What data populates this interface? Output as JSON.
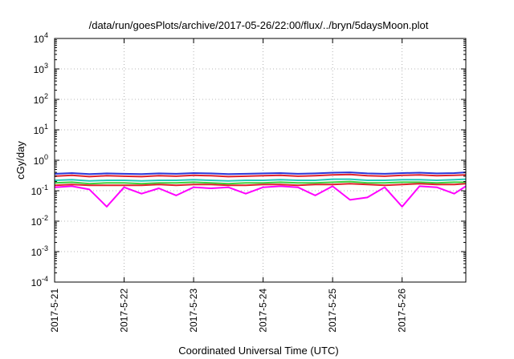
{
  "chart_data": {
    "type": "line",
    "title": "/data/run/goesPlots/archive/2017-05-26/22:00/flux/../bryn/5daysMoon.plot",
    "xlabel": "Coordinated Universal Time (UTC)",
    "ylabel": "cGy/day",
    "yscale": "log",
    "ylim": [
      0.0001,
      10000
    ],
    "xlim": [
      "2017-05-21",
      "2017-05-26T22:00"
    ],
    "grid": true,
    "x_ticks": [
      "2017-5-21",
      "2017-5-22",
      "2017-5-23",
      "2017-5-24",
      "2017-5-25",
      "2017-5-26"
    ],
    "y_ticks": [
      {
        "value": 0.0001,
        "base": "10",
        "exp": "-4"
      },
      {
        "value": 0.001,
        "base": "10",
        "exp": "-3"
      },
      {
        "value": 0.01,
        "base": "10",
        "exp": "-2"
      },
      {
        "value": 0.1,
        "base": "10",
        "exp": "-1"
      },
      {
        "value": 1,
        "base": "10",
        "exp": "0"
      },
      {
        "value": 10,
        "base": "10",
        "exp": "1"
      },
      {
        "value": 100,
        "base": "10",
        "exp": "2"
      },
      {
        "value": 1000,
        "base": "10",
        "exp": "3"
      },
      {
        "value": 10000,
        "base": "10",
        "exp": "4"
      }
    ],
    "x": [
      "2017-05-21T00:00",
      "2017-05-21T06:00",
      "2017-05-21T12:00",
      "2017-05-21T18:00",
      "2017-05-22T00:00",
      "2017-05-22T06:00",
      "2017-05-22T12:00",
      "2017-05-22T18:00",
      "2017-05-23T00:00",
      "2017-05-23T06:00",
      "2017-05-23T12:00",
      "2017-05-23T18:00",
      "2017-05-24T00:00",
      "2017-05-24T06:00",
      "2017-05-24T12:00",
      "2017-05-24T18:00",
      "2017-05-25T00:00",
      "2017-05-25T06:00",
      "2017-05-25T12:00",
      "2017-05-25T18:00",
      "2017-05-26T00:00",
      "2017-05-26T06:00",
      "2017-05-26T12:00",
      "2017-05-26T18:00",
      "2017-05-26T22:00"
    ],
    "series": [
      {
        "color": "#2b36d9",
        "values": [
          0.36,
          0.38,
          0.35,
          0.37,
          0.36,
          0.35,
          0.37,
          0.36,
          0.38,
          0.37,
          0.35,
          0.36,
          0.37,
          0.38,
          0.36,
          0.37,
          0.39,
          0.4,
          0.37,
          0.36,
          0.38,
          0.39,
          0.37,
          0.38,
          0.4
        ]
      },
      {
        "color": "#e0232b",
        "values": [
          0.3,
          0.32,
          0.29,
          0.31,
          0.3,
          0.29,
          0.31,
          0.3,
          0.32,
          0.31,
          0.29,
          0.3,
          0.31,
          0.32,
          0.3,
          0.31,
          0.33,
          0.34,
          0.31,
          0.3,
          0.32,
          0.33,
          0.31,
          0.32,
          0.33
        ]
      },
      {
        "color": "#21c9b8",
        "values": [
          0.22,
          0.23,
          0.21,
          0.22,
          0.22,
          0.21,
          0.22,
          0.22,
          0.23,
          0.22,
          0.21,
          0.22,
          0.22,
          0.23,
          0.22,
          0.22,
          0.24,
          0.24,
          0.22,
          0.22,
          0.23,
          0.23,
          0.22,
          0.23,
          0.24
        ]
      },
      {
        "color": "#3bd23b",
        "values": [
          0.18,
          0.19,
          0.17,
          0.18,
          0.18,
          0.17,
          0.18,
          0.18,
          0.19,
          0.18,
          0.17,
          0.18,
          0.18,
          0.19,
          0.18,
          0.18,
          0.19,
          0.2,
          0.18,
          0.18,
          0.19,
          0.19,
          0.18,
          0.19,
          0.19
        ]
      },
      {
        "color": "#ff00ff",
        "values": [
          0.13,
          0.14,
          0.11,
          0.03,
          0.13,
          0.08,
          0.12,
          0.07,
          0.13,
          0.12,
          0.13,
          0.08,
          0.13,
          0.14,
          0.13,
          0.07,
          0.14,
          0.05,
          0.06,
          0.13,
          0.03,
          0.14,
          0.13,
          0.08,
          0.14
        ]
      },
      {
        "color": "#e0232b",
        "values": [
          0.15,
          0.16,
          0.15,
          0.15,
          0.15,
          0.15,
          0.16,
          0.15,
          0.16,
          0.16,
          0.15,
          0.15,
          0.16,
          0.16,
          0.15,
          0.16,
          0.16,
          0.17,
          0.16,
          0.15,
          0.16,
          0.17,
          0.16,
          0.16,
          0.17
        ]
      }
    ]
  }
}
